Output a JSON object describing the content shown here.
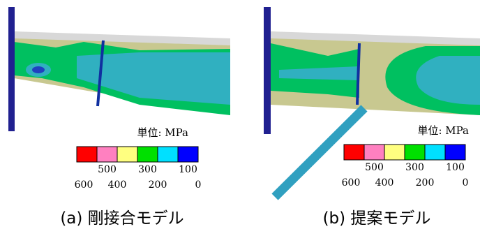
{
  "panels": [
    {
      "caption": "(a) 剛接合モデル",
      "unit": "単位: MPa",
      "legend_colors": [
        "#ff0000",
        "#ff80c0",
        "#ffff80",
        "#00e000",
        "#00e0ff",
        "#0000ff"
      ],
      "upper_labels": [
        500,
        300,
        100
      ],
      "lower_labels": [
        600,
        400,
        200,
        0
      ]
    },
    {
      "caption": "(b) 提案モデル",
      "unit": "単位: MPa",
      "legend_colors": [
        "#ff0000",
        "#ff80c0",
        "#ffff80",
        "#00e000",
        "#00e0ff",
        "#0000ff"
      ],
      "upper_labels": [
        500,
        300,
        100
      ],
      "lower_labels": [
        600,
        400,
        200,
        0
      ]
    }
  ]
}
